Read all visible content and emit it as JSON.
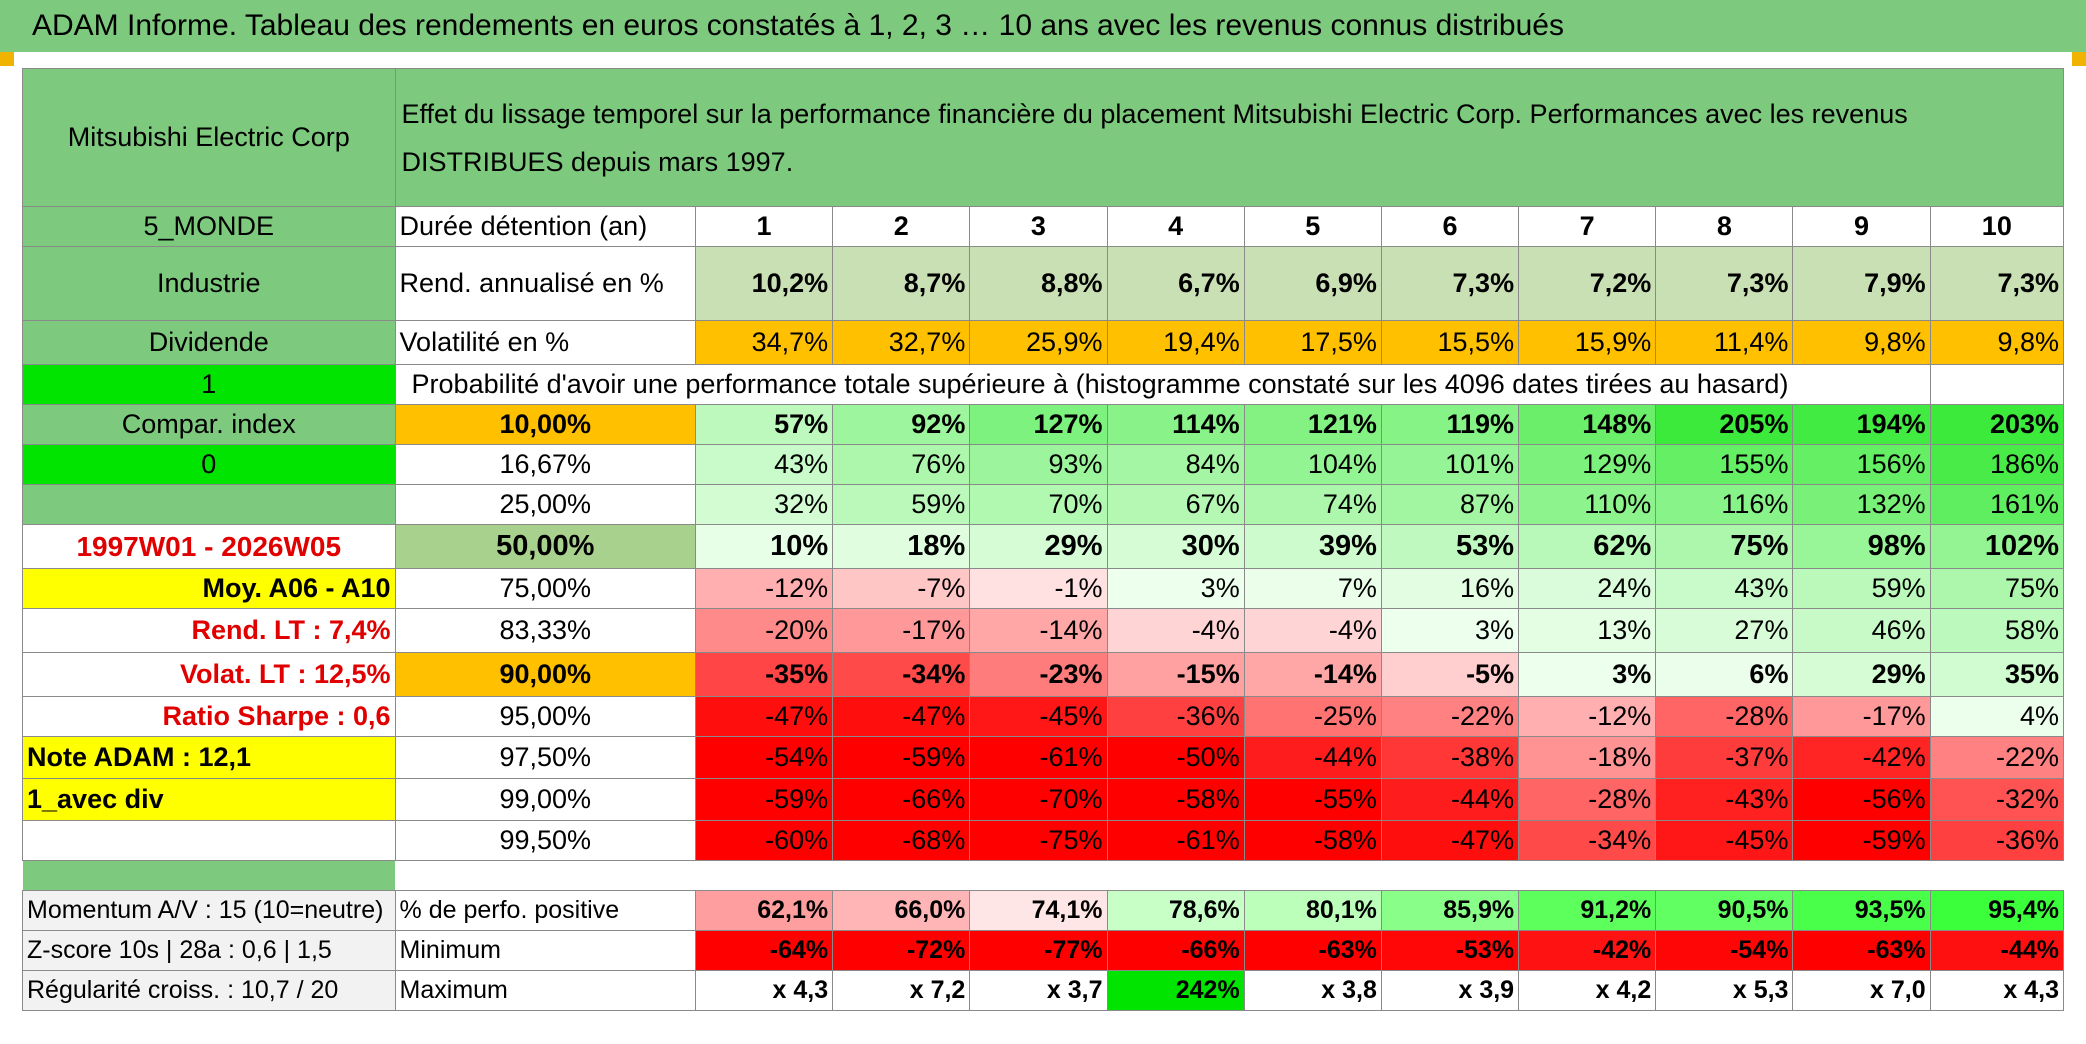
{
  "title": "ADAM Informe. Tableau des rendements en euros constatés à 1, 2, 3 … 10 ans avec les revenus connus distribués",
  "company": "Mitsubishi Electric Corp",
  "description": "Effet du lissage temporel sur la performance financière du placement Mitsubishi Electric Corp. Performances avec les revenus DISTRIBUES depuis mars 1997.",
  "left": {
    "region": "5_MONDE",
    "sector": "Industrie",
    "type": "Dividende",
    "flag1": "1",
    "compar": "Compar. index",
    "flag0": "0",
    "period": "1997W01 - 2026W05",
    "moy": "Moy. A06 - A10",
    "rend_lt": "Rend. LT :   7,4%",
    "volat_lt": "Volat. LT :   12,5%",
    "sharpe": "Ratio Sharpe :   0,6",
    "note": "Note ADAM : 12,1",
    "avec_div": "1_avec div",
    "momentum": "Momentum A/V : 15 (10=neutre)",
    "zscore": "Z-score 10s | 28a : 0,6 | 1,5",
    "regularite": "Régularité croiss. : 10,7 / 20"
  },
  "labels": {
    "duree": "Durée détention (an)",
    "rend": "Rend. annualisé en %",
    "vol": "Volatilité en %",
    "proba": "Probabilité d'avoir une performance totale supérieure à (histogramme constaté sur les 4096 dates tirées au hasard)",
    "pos": "% de perfo. positive",
    "min": "Minimum",
    "max": "Maximum"
  },
  "years": [
    "1",
    "2",
    "3",
    "4",
    "5",
    "6",
    "7",
    "8",
    "9",
    "10"
  ],
  "rend": [
    "10,2%",
    "8,7%",
    "8,8%",
    "6,7%",
    "6,9%",
    "7,3%",
    "7,2%",
    "7,3%",
    "7,9%",
    "7,3%"
  ],
  "vol": [
    "34,7%",
    "32,7%",
    "25,9%",
    "19,4%",
    "17,5%",
    "15,5%",
    "15,9%",
    "11,4%",
    "9,8%",
    "9,8%"
  ],
  "quantiles": [
    {
      "q": "10,00%",
      "v": [
        "57%",
        "92%",
        "127%",
        "114%",
        "121%",
        "119%",
        "148%",
        "205%",
        "194%",
        "203%"
      ]
    },
    {
      "q": "16,67%",
      "v": [
        "43%",
        "76%",
        "93%",
        "84%",
        "104%",
        "101%",
        "129%",
        "155%",
        "156%",
        "186%"
      ]
    },
    {
      "q": "25,00%",
      "v": [
        "32%",
        "59%",
        "70%",
        "67%",
        "74%",
        "87%",
        "110%",
        "116%",
        "132%",
        "161%"
      ]
    },
    {
      "q": "50,00%",
      "v": [
        "10%",
        "18%",
        "29%",
        "30%",
        "39%",
        "53%",
        "62%",
        "75%",
        "98%",
        "102%"
      ]
    },
    {
      "q": "75,00%",
      "v": [
        "-12%",
        "-7%",
        "-1%",
        "3%",
        "7%",
        "16%",
        "24%",
        "43%",
        "59%",
        "75%"
      ]
    },
    {
      "q": "83,33%",
      "v": [
        "-20%",
        "-17%",
        "-14%",
        "-4%",
        "-4%",
        "3%",
        "13%",
        "27%",
        "46%",
        "58%"
      ]
    },
    {
      "q": "90,00%",
      "v": [
        "-35%",
        "-34%",
        "-23%",
        "-15%",
        "-14%",
        "-5%",
        "3%",
        "6%",
        "29%",
        "35%"
      ]
    },
    {
      "q": "95,00%",
      "v": [
        "-47%",
        "-47%",
        "-45%",
        "-36%",
        "-25%",
        "-22%",
        "-12%",
        "-28%",
        "-17%",
        "4%"
      ]
    },
    {
      "q": "97,50%",
      "v": [
        "-54%",
        "-59%",
        "-61%",
        "-50%",
        "-44%",
        "-38%",
        "-18%",
        "-37%",
        "-42%",
        "-22%"
      ]
    },
    {
      "q": "99,00%",
      "v": [
        "-59%",
        "-66%",
        "-70%",
        "-58%",
        "-55%",
        "-44%",
        "-28%",
        "-43%",
        "-56%",
        "-32%"
      ]
    },
    {
      "q": "99,50%",
      "v": [
        "-60%",
        "-68%",
        "-75%",
        "-61%",
        "-58%",
        "-47%",
        "-34%",
        "-45%",
        "-59%",
        "-36%"
      ]
    }
  ],
  "pos": [
    "62,1%",
    "66,0%",
    "74,1%",
    "78,6%",
    "80,1%",
    "85,9%",
    "91,2%",
    "90,5%",
    "93,5%",
    "95,4%"
  ],
  "min": [
    "-64%",
    "-72%",
    "-77%",
    "-66%",
    "-63%",
    "-53%",
    "-42%",
    "-54%",
    "-63%",
    "-44%"
  ],
  "max": [
    "x 4,3",
    "x 7,2",
    "x 3,7",
    "242%",
    "x 3,8",
    "x 3,9",
    "x 4,2",
    "x 5,3",
    "x 7,0",
    "x 4,3"
  ],
  "colors": {
    "header_green": "#7dc97d",
    "bright_green": "#00e400",
    "yellow": "#ffff00",
    "orange": "#ffc000",
    "red_text": "#e00000"
  }
}
